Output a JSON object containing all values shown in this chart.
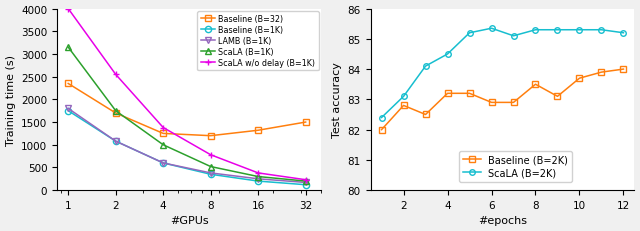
{
  "left": {
    "gpus": [
      1,
      2,
      4,
      8,
      16,
      32
    ],
    "baseline_32": [
      2350,
      1700,
      1250,
      1200,
      1320,
      1500
    ],
    "baseline_1k": [
      1750,
      1080,
      600,
      350,
      200,
      120
    ],
    "lamb_1k": [
      1800,
      1080,
      600,
      380,
      250,
      170
    ],
    "scala_1k": [
      3150,
      1750,
      1000,
      520,
      300,
      200
    ],
    "scala_wodelay_1k": [
      4000,
      2550,
      1380,
      780,
      380,
      230
    ],
    "colors": {
      "baseline_32": "#ff7f0e",
      "baseline_1k": "#17becf",
      "lamb_1k": "#9467bd",
      "scala_1k": "#2ca02c",
      "scala_wodelay_1k": "#e800e8"
    },
    "markers": {
      "baseline_32": "s",
      "baseline_1k": "o",
      "lamb_1k": "v",
      "scala_1k": "^",
      "scala_wodelay_1k": "+"
    },
    "labels": {
      "baseline_32": "Baseline (B=32)",
      "baseline_1k": "Baseline (B=1K)",
      "lamb_1k": "LAMB (B=1K)",
      "scala_1k": "ScaLA (B=1K)",
      "scala_wodelay_1k": "ScaLA w/o delay (B=1K)"
    },
    "open_markers": [
      "baseline_32",
      "baseline_1k",
      "lamb_1k",
      "scala_1k"
    ],
    "ylabel": "Training time (s)",
    "xlabel": "#GPUs",
    "ylim": [
      0,
      4000
    ],
    "yticks": [
      0,
      500,
      1000,
      1500,
      2000,
      2500,
      3000,
      3500,
      4000
    ]
  },
  "right": {
    "epochs": [
      1,
      2,
      3,
      4,
      5,
      6,
      7,
      8,
      9,
      10,
      11,
      12
    ],
    "baseline_2k": [
      82.0,
      82.8,
      82.5,
      83.2,
      83.2,
      82.9,
      82.9,
      83.5,
      83.1,
      83.7,
      83.9,
      84.0
    ],
    "scala_2k": [
      82.4,
      83.1,
      84.1,
      84.5,
      85.2,
      85.35,
      85.1,
      85.3,
      85.3,
      85.3,
      85.3,
      85.2
    ],
    "colors": {
      "baseline_2k": "#ff7f0e",
      "scala_2k": "#17becf"
    },
    "markers": {
      "baseline_2k": "s",
      "scala_2k": "o"
    },
    "labels": {
      "baseline_2k": "Baseline (B=2K)",
      "scala_2k": "ScaLA (B=2K)"
    },
    "ylabel": "Test accuracy",
    "xlabel": "#epochs",
    "ylim": [
      80,
      86
    ],
    "yticks": [
      80,
      81,
      82,
      83,
      84,
      85,
      86
    ],
    "legend_loc": "lower center"
  },
  "fig_width": 6.4,
  "fig_height": 2.32,
  "fig_dpi": 100,
  "bg_color": "#f0f0f0"
}
